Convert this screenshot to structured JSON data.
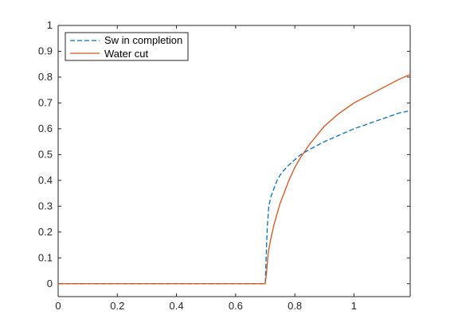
{
  "chart_data": {
    "type": "line",
    "title": "",
    "xlabel": "",
    "ylabel": "",
    "xlim": [
      0,
      1.19
    ],
    "ylim": [
      -0.05,
      1
    ],
    "xticks": [
      0,
      0.2,
      0.4,
      0.6,
      0.8,
      1
    ],
    "xtick_labels": [
      "0",
      "0.2",
      "0.4",
      "0.6",
      "0.8",
      "1"
    ],
    "yticks": [
      0,
      0.1,
      0.2,
      0.3,
      0.4,
      0.5,
      0.6,
      0.7,
      0.8,
      0.9,
      1
    ],
    "ytick_labels": [
      "0",
      "0.1",
      "0.2",
      "0.3",
      "0.4",
      "0.5",
      "0.6",
      "0.7",
      "0.8",
      "0.9",
      "1"
    ],
    "grid": false,
    "legend_position": "top-left",
    "series": [
      {
        "name": "Sw in completion",
        "color": "#0072BD",
        "style": "dashed",
        "x": [
          0,
          0.7,
          0.703,
          0.707,
          0.712,
          0.72,
          0.73,
          0.74,
          0.75,
          0.76,
          0.78,
          0.8,
          0.82,
          0.85,
          0.9,
          0.95,
          1.0,
          1.05,
          1.1,
          1.15,
          1.19
        ],
        "y": [
          0,
          0,
          0.1,
          0.22,
          0.3,
          0.34,
          0.37,
          0.4,
          0.42,
          0.435,
          0.46,
          0.48,
          0.5,
          0.52,
          0.55,
          0.575,
          0.6,
          0.62,
          0.64,
          0.66,
          0.67
        ]
      },
      {
        "name": "Water cut",
        "color": "#D95319",
        "style": "solid",
        "x": [
          0,
          0.7,
          0.705,
          0.71,
          0.72,
          0.73,
          0.74,
          0.75,
          0.76,
          0.78,
          0.8,
          0.82,
          0.85,
          0.9,
          0.95,
          1.0,
          1.05,
          1.1,
          1.15,
          1.19
        ],
        "y": [
          0,
          0,
          0.05,
          0.12,
          0.18,
          0.23,
          0.27,
          0.31,
          0.34,
          0.4,
          0.45,
          0.49,
          0.54,
          0.61,
          0.66,
          0.7,
          0.73,
          0.76,
          0.79,
          0.81
        ]
      }
    ]
  }
}
